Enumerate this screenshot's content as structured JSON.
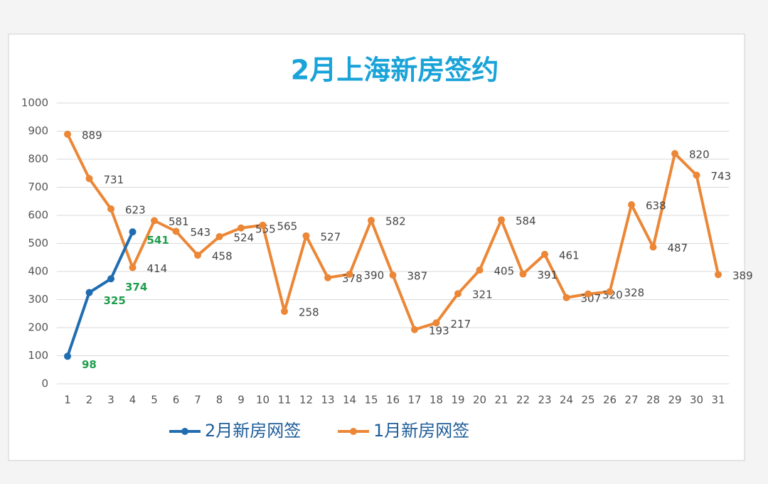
{
  "chart_data": {
    "type": "line",
    "title": "2月上海新房签约",
    "categories": [
      "1",
      "2",
      "3",
      "4",
      "5",
      "6",
      "7",
      "8",
      "9",
      "10",
      "11",
      "12",
      "13",
      "14",
      "15",
      "16",
      "17",
      "18",
      "19",
      "20",
      "21",
      "22",
      "23",
      "24",
      "25",
      "26",
      "27",
      "28",
      "29",
      "30",
      "31"
    ],
    "series": [
      {
        "name": "2月新房网签",
        "color": "#1f6db0",
        "values": [
          98,
          325,
          374,
          541,
          null,
          null,
          null,
          null,
          null,
          null,
          null,
          null,
          null,
          null,
          null,
          null,
          null,
          null,
          null,
          null,
          null,
          null,
          null,
          null,
          null,
          null,
          null,
          null,
          null,
          null,
          null
        ]
      },
      {
        "name": "1月新房网签",
        "color": "#eb8736",
        "values": [
          889,
          731,
          623,
          414,
          581,
          543,
          458,
          524,
          555,
          565,
          258,
          527,
          378,
          390,
          582,
          387,
          193,
          217,
          321,
          405,
          584,
          391,
          461,
          307,
          320,
          328,
          638,
          487,
          820,
          743,
          389
        ]
      }
    ],
    "ylim": [
      0,
      1000
    ],
    "yticks": [
      0,
      100,
      200,
      300,
      400,
      500,
      600,
      700,
      800,
      900,
      1000
    ],
    "grid": true
  }
}
